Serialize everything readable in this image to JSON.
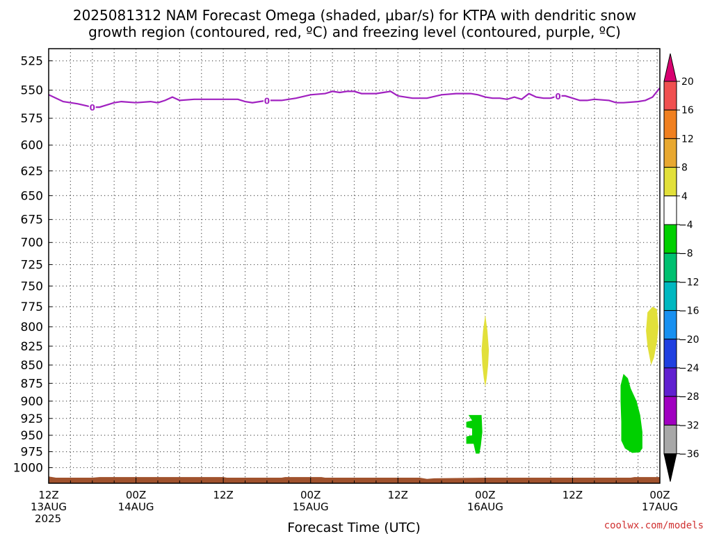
{
  "title_line1": "2025081312 NAM Forecast Omega (shaded, μbar/s) for KTPA with dendritic snow",
  "title_line2": "growth region (contoured, red, ºC) and freezing level (contoured, purple, ºC)",
  "credit": "coolwx.com/models",
  "chart_data": {
    "type": "time-height",
    "title": "2025081312 NAM Forecast Omega (shaded, μbar/s) for KTPA with dendritic snow growth region (contoured, red, ºC) and freezing level (contoured, purple, ºC)",
    "xlabel": "Forecast Time (UTC)",
    "ylabel": "",
    "x_range_hours": [
      0,
      84
    ],
    "ylim_hpa": [
      1025,
      515
    ],
    "y_log_scale": true,
    "grid": true,
    "y_ticks": [
      "525",
      "550",
      "575",
      "600",
      "625",
      "650",
      "675",
      "700",
      "725",
      "750",
      "775",
      "800",
      "825",
      "850",
      "875",
      "900",
      "925",
      "950",
      "975",
      "1000"
    ],
    "x_ticks": [
      {
        "hour": 0,
        "l1": "12Z",
        "l2": "13AUG",
        "l3": "2025"
      },
      {
        "hour": 12,
        "l1": "00Z",
        "l2": "14AUG",
        "l3": ""
      },
      {
        "hour": 24,
        "l1": "12Z",
        "l2": "",
        "l3": ""
      },
      {
        "hour": 36,
        "l1": "00Z",
        "l2": "15AUG",
        "l3": ""
      },
      {
        "hour": 48,
        "l1": "12Z",
        "l2": "",
        "l3": ""
      },
      {
        "hour": 60,
        "l1": "00Z",
        "l2": "16AUG",
        "l3": ""
      },
      {
        "hour": 72,
        "l1": "12Z",
        "l2": "",
        "l3": ""
      },
      {
        "hour": 84,
        "l1": "00Z",
        "l2": "17AUG",
        "l3": ""
      }
    ],
    "freezing_level": {
      "label": "0",
      "color": "#a020c0",
      "points": [
        [
          0,
          554
        ],
        [
          2,
          560
        ],
        [
          4,
          562
        ],
        [
          6,
          565
        ],
        [
          7,
          565
        ],
        [
          8,
          563
        ],
        [
          9,
          561
        ],
        [
          10,
          560
        ],
        [
          12,
          561
        ],
        [
          14,
          560
        ],
        [
          15,
          561
        ],
        [
          16,
          559
        ],
        [
          17,
          556
        ],
        [
          18,
          559
        ],
        [
          20,
          558
        ],
        [
          22,
          558
        ],
        [
          24,
          558
        ],
        [
          26,
          558
        ],
        [
          27,
          560
        ],
        [
          28,
          561
        ],
        [
          30,
          559
        ],
        [
          32,
          559
        ],
        [
          34,
          557
        ],
        [
          36,
          554
        ],
        [
          38,
          553
        ],
        [
          39,
          551
        ],
        [
          40,
          552
        ],
        [
          41,
          551
        ],
        [
          42,
          551
        ],
        [
          43,
          553
        ],
        [
          45,
          553
        ],
        [
          46,
          552
        ],
        [
          47,
          551
        ],
        [
          48,
          555
        ],
        [
          50,
          557
        ],
        [
          52,
          557
        ],
        [
          54,
          554
        ],
        [
          56,
          553
        ],
        [
          57,
          553
        ],
        [
          58,
          553
        ],
        [
          59,
          554
        ],
        [
          60,
          556
        ],
        [
          61,
          557
        ],
        [
          62,
          557
        ],
        [
          63,
          558
        ],
        [
          64,
          556
        ],
        [
          65,
          558
        ],
        [
          66,
          553
        ],
        [
          67,
          556
        ],
        [
          68,
          557
        ],
        [
          69,
          557
        ],
        [
          70,
          555
        ],
        [
          71,
          555
        ],
        [
          73,
          559
        ],
        [
          74,
          559
        ],
        [
          75,
          558
        ],
        [
          77,
          559
        ],
        [
          78,
          561
        ],
        [
          79,
          561
        ],
        [
          81,
          560
        ],
        [
          82,
          559
        ],
        [
          83,
          556
        ],
        [
          84,
          548
        ]
      ],
      "label_hours": [
        6,
        30,
        70
      ]
    },
    "terrain": {
      "color": "#a0522d",
      "points": [
        [
          0,
          1014
        ],
        [
          1,
          1016
        ],
        [
          6,
          1016
        ],
        [
          7,
          1015
        ],
        [
          24,
          1015
        ],
        [
          24.5,
          1016
        ],
        [
          32,
          1016
        ],
        [
          32.5,
          1015
        ],
        [
          37.5,
          1015
        ],
        [
          38,
          1016
        ],
        [
          51,
          1016
        ],
        [
          52,
          1018
        ],
        [
          53,
          1017
        ],
        [
          60,
          1016
        ],
        [
          80,
          1016
        ],
        [
          80.5,
          1015
        ],
        [
          84,
          1015
        ]
      ]
    },
    "omega_regions": [
      {
        "category": "4 to 8",
        "color": "#e2e03a",
        "polygon": [
          [
            60,
            785
          ],
          [
            60.3,
            805
          ],
          [
            60.5,
            830
          ],
          [
            60.4,
            850
          ],
          [
            60.2,
            868
          ],
          [
            60,
            880
          ],
          [
            59.8,
            868
          ],
          [
            59.6,
            850
          ],
          [
            59.5,
            830
          ],
          [
            59.7,
            805
          ]
        ]
      },
      {
        "category": "4 to 8",
        "color": "#e2e03a",
        "polygon": [
          [
            83,
            775
          ],
          [
            83.6,
            778
          ],
          [
            83.8,
            800
          ],
          [
            83.6,
            820
          ],
          [
            83.2,
            840
          ],
          [
            82.8,
            850
          ],
          [
            82.3,
            825
          ],
          [
            82.1,
            805
          ],
          [
            82.3,
            782
          ]
        ]
      },
      {
        "category": "-8 to -4",
        "color": "#00d000",
        "polygon": [
          [
            57.7,
            920
          ],
          [
            59.5,
            920
          ],
          [
            59.6,
            945
          ],
          [
            59.4,
            965
          ],
          [
            59.2,
            978
          ],
          [
            58.7,
            978
          ],
          [
            58.4,
            963
          ],
          [
            57.4,
            963
          ],
          [
            57.4,
            952
          ],
          [
            58.2,
            950
          ],
          [
            58.2,
            940
          ],
          [
            57.4,
            938
          ],
          [
            57.4,
            930
          ],
          [
            58.2,
            928
          ]
        ]
      },
      {
        "category": "-8 to -4",
        "color": "#00d000",
        "polygon": [
          [
            79,
            862
          ],
          [
            79.6,
            868
          ],
          [
            80,
            882
          ],
          [
            80.8,
            900
          ],
          [
            81.3,
            920
          ],
          [
            81.6,
            945
          ],
          [
            81.6,
            970
          ],
          [
            81.2,
            976
          ],
          [
            80.2,
            977
          ],
          [
            79.2,
            970
          ],
          [
            78.7,
            958
          ],
          [
            78.7,
            930
          ],
          [
            78.6,
            900
          ],
          [
            78.6,
            878
          ]
        ]
      }
    ],
    "colorbar": {
      "labels": [
        "20",
        "16",
        "12",
        "8",
        "4",
        "−4",
        "−8",
        "−12",
        "−16",
        "−20",
        "−24",
        "−28",
        "−32",
        "−36"
      ],
      "colors": [
        "#d80070",
        "#f05050",
        "#f08020",
        "#e8a830",
        "#e2e03a",
        "#ffffff",
        "#00d000",
        "#00c070",
        "#00b8c0",
        "#1890f0",
        "#2040e0",
        "#6020d0",
        "#a000c0",
        "#a8a8a8",
        "#000000"
      ]
    }
  }
}
